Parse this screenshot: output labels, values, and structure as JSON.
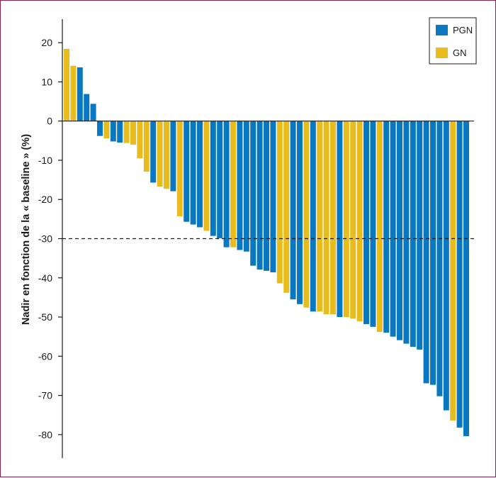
{
  "chart_data": {
    "type": "bar",
    "title": "",
    "xlabel": "",
    "ylabel": "Nadir en fonction de la « baseline » (%)",
    "ylim": [
      -86,
      26
    ],
    "yticks": [
      20,
      10,
      0,
      -10,
      -20,
      -30,
      -40,
      -50,
      -60,
      -70,
      -80
    ],
    "reference_line": {
      "y": -30,
      "style": "dashed"
    },
    "legend_position": "top-right",
    "colors": {
      "PGN": "#0a78c0",
      "GN": "#e9bc1e"
    },
    "series": [
      {
        "name": "PGN",
        "color": "#0a78c0"
      },
      {
        "name": "GN",
        "color": "#e9bc1e"
      }
    ],
    "bars": [
      {
        "group": "GN",
        "value": 18.4
      },
      {
        "group": "GN",
        "value": 14.1
      },
      {
        "group": "PGN",
        "value": 13.7
      },
      {
        "group": "PGN",
        "value": 6.9
      },
      {
        "group": "PGN",
        "value": 4.4
      },
      {
        "group": "PGN",
        "value": -3.8
      },
      {
        "group": "GN",
        "value": -4.4
      },
      {
        "group": "PGN",
        "value": -5.2
      },
      {
        "group": "PGN",
        "value": -5.5
      },
      {
        "group": "GN",
        "value": -5.6
      },
      {
        "group": "GN",
        "value": -6.0
      },
      {
        "group": "GN",
        "value": -9.5
      },
      {
        "group": "GN",
        "value": -12.9
      },
      {
        "group": "PGN",
        "value": -15.7
      },
      {
        "group": "GN",
        "value": -16.7
      },
      {
        "group": "GN",
        "value": -17.3
      },
      {
        "group": "PGN",
        "value": -17.9
      },
      {
        "group": "GN",
        "value": -24.3
      },
      {
        "group": "PGN",
        "value": -25.7
      },
      {
        "group": "PGN",
        "value": -26.4
      },
      {
        "group": "PGN",
        "value": -27.1
      },
      {
        "group": "GN",
        "value": -28.0
      },
      {
        "group": "PGN",
        "value": -29.3
      },
      {
        "group": "PGN",
        "value": -29.9
      },
      {
        "group": "PGN",
        "value": -32.2
      },
      {
        "group": "GN",
        "value": -32.2
      },
      {
        "group": "PGN",
        "value": -32.9
      },
      {
        "group": "PGN",
        "value": -33.3
      },
      {
        "group": "PGN",
        "value": -36.9
      },
      {
        "group": "PGN",
        "value": -37.9
      },
      {
        "group": "PGN",
        "value": -38.2
      },
      {
        "group": "PGN",
        "value": -38.6
      },
      {
        "group": "GN",
        "value": -41.4
      },
      {
        "group": "GN",
        "value": -43.8
      },
      {
        "group": "PGN",
        "value": -45.5
      },
      {
        "group": "PGN",
        "value": -46.7
      },
      {
        "group": "GN",
        "value": -47.6
      },
      {
        "group": "PGN",
        "value": -48.6
      },
      {
        "group": "GN",
        "value": -48.6
      },
      {
        "group": "GN",
        "value": -49.3
      },
      {
        "group": "GN",
        "value": -49.3
      },
      {
        "group": "PGN",
        "value": -50.0
      },
      {
        "group": "GN",
        "value": -50.0
      },
      {
        "group": "GN",
        "value": -50.4
      },
      {
        "group": "GN",
        "value": -51.1
      },
      {
        "group": "PGN",
        "value": -51.8
      },
      {
        "group": "PGN",
        "value": -52.5
      },
      {
        "group": "GN",
        "value": -53.8
      },
      {
        "group": "PGN",
        "value": -54.0
      },
      {
        "group": "PGN",
        "value": -55.0
      },
      {
        "group": "PGN",
        "value": -55.9
      },
      {
        "group": "PGN",
        "value": -56.8
      },
      {
        "group": "PGN",
        "value": -57.6
      },
      {
        "group": "PGN",
        "value": -58.3
      },
      {
        "group": "PGN",
        "value": -66.9
      },
      {
        "group": "PGN",
        "value": -67.3
      },
      {
        "group": "PGN",
        "value": -70.2
      },
      {
        "group": "PGN",
        "value": -73.8
      },
      {
        "group": "GN",
        "value": -76.4
      },
      {
        "group": "PGN",
        "value": -78.2
      },
      {
        "group": "PGN",
        "value": -80.4
      }
    ],
    "grid": false
  },
  "legend": {
    "items": [
      {
        "label": "PGN",
        "color": "#0a78c0"
      },
      {
        "label": "GN",
        "color": "#e9bc1e"
      }
    ]
  }
}
